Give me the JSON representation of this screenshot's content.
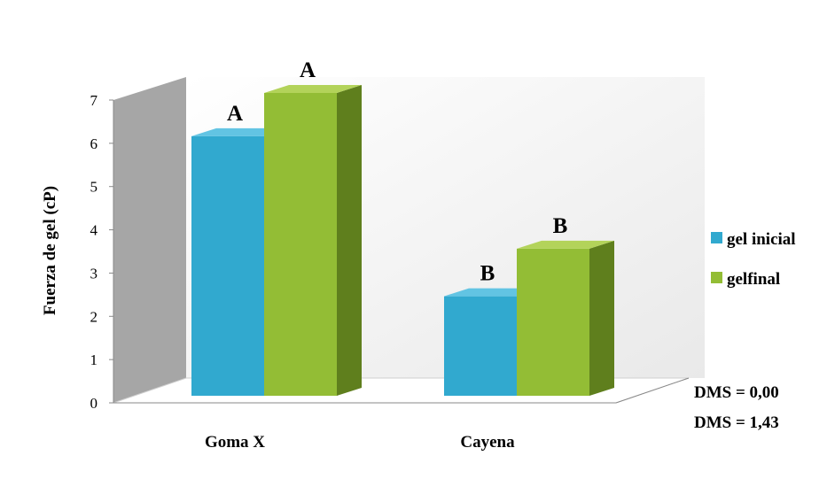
{
  "chart_data": {
    "type": "bar",
    "categories": [
      "Goma X",
      "Cayena"
    ],
    "series": [
      {
        "name": "gel inicial",
        "values": [
          6.0,
          2.3
        ],
        "labels": [
          "A",
          "B"
        ],
        "color": "#31a9cf",
        "side_color": "#1d7b9b",
        "top_color": "#62c4e3"
      },
      {
        "name": "gelfinal",
        "values": [
          7.0,
          3.4
        ],
        "labels": [
          "A",
          "B"
        ],
        "color": "#93bd35",
        "side_color": "#5f7f1d",
        "top_color": "#b3d35a"
      }
    ],
    "ylabel": "Fuerza de gel (cP)",
    "ylim": [
      0,
      7
    ],
    "yticks": [
      "0",
      "1",
      "2",
      "3",
      "4",
      "5",
      "6",
      "7"
    ],
    "legend_position": "right",
    "annotations": [
      "DMS = 0,00",
      "DMS = 1,43"
    ],
    "wall_color": "#a6a6a6",
    "back_color": "#f2f2f2"
  }
}
